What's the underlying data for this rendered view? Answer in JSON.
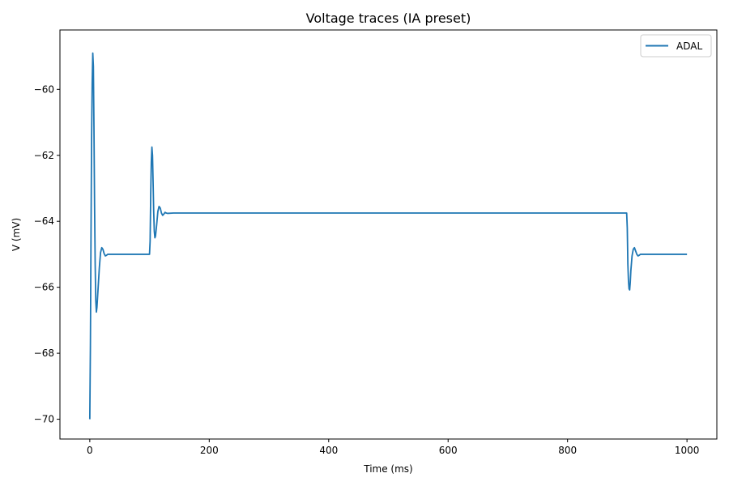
{
  "chart_data": {
    "type": "line",
    "title": "Voltage traces (IA preset)",
    "xlabel": "Time (ms)",
    "ylabel": "V (mV)",
    "xlim": [
      -50,
      1050
    ],
    "ylim": [
      -70.6,
      -58.2
    ],
    "xticks": [
      0,
      200,
      400,
      600,
      800,
      1000
    ],
    "yticks": [
      -70,
      -68,
      -66,
      -64,
      -62,
      -60
    ],
    "xtick_labels": [
      "0",
      "200",
      "400",
      "600",
      "800",
      "1000"
    ],
    "ytick_labels": [
      "−70",
      "−68",
      "−66",
      "−64",
      "−62",
      "−60"
    ],
    "grid": false,
    "legend_position": "top-right",
    "series": [
      {
        "name": "ADAL",
        "color": "#1f77b4",
        "points": [
          [
            0,
            -70
          ],
          [
            1,
            -67.8
          ],
          [
            2,
            -64.5
          ],
          [
            3,
            -61.5
          ],
          [
            4,
            -59.8
          ],
          [
            5,
            -58.9
          ],
          [
            6,
            -59.3
          ],
          [
            7,
            -61.2
          ],
          [
            8,
            -63.5
          ],
          [
            9,
            -65.3
          ],
          [
            10,
            -66.4
          ],
          [
            11,
            -66.75
          ],
          [
            12,
            -66.6
          ],
          [
            14,
            -66.0
          ],
          [
            16,
            -65.4
          ],
          [
            18,
            -64.95
          ],
          [
            20,
            -64.8
          ],
          [
            22,
            -64.85
          ],
          [
            24,
            -64.98
          ],
          [
            26,
            -65.05
          ],
          [
            28,
            -65.03
          ],
          [
            30,
            -65.0
          ],
          [
            40,
            -65.0
          ],
          [
            60,
            -65.0
          ],
          [
            80,
            -65.0
          ],
          [
            100,
            -65.0
          ],
          [
            101,
            -64.6
          ],
          [
            102,
            -63.2
          ],
          [
            103,
            -62.2
          ],
          [
            104,
            -61.75
          ],
          [
            105,
            -62.0
          ],
          [
            106,
            -62.8
          ],
          [
            107,
            -63.7
          ],
          [
            108,
            -64.3
          ],
          [
            109,
            -64.5
          ],
          [
            110,
            -64.45
          ],
          [
            112,
            -64.1
          ],
          [
            114,
            -63.7
          ],
          [
            116,
            -63.55
          ],
          [
            118,
            -63.6
          ],
          [
            120,
            -63.75
          ],
          [
            122,
            -63.82
          ],
          [
            124,
            -63.78
          ],
          [
            126,
            -63.73
          ],
          [
            128,
            -63.75
          ],
          [
            130,
            -63.76
          ],
          [
            140,
            -63.75
          ],
          [
            200,
            -63.75
          ],
          [
            400,
            -63.75
          ],
          [
            600,
            -63.75
          ],
          [
            800,
            -63.75
          ],
          [
            899,
            -63.75
          ],
          [
            900,
            -64.2
          ],
          [
            901,
            -65.3
          ],
          [
            902,
            -65.8
          ],
          [
            903,
            -66.05
          ],
          [
            904,
            -66.08
          ],
          [
            905,
            -65.85
          ],
          [
            906,
            -65.5
          ],
          [
            908,
            -65.05
          ],
          [
            910,
            -64.85
          ],
          [
            912,
            -64.8
          ],
          [
            914,
            -64.9
          ],
          [
            916,
            -65.0
          ],
          [
            918,
            -65.05
          ],
          [
            920,
            -65.03
          ],
          [
            922,
            -65.0
          ],
          [
            930,
            -65.0
          ],
          [
            960,
            -65.0
          ],
          [
            1000,
            -65.0
          ]
        ]
      }
    ]
  }
}
